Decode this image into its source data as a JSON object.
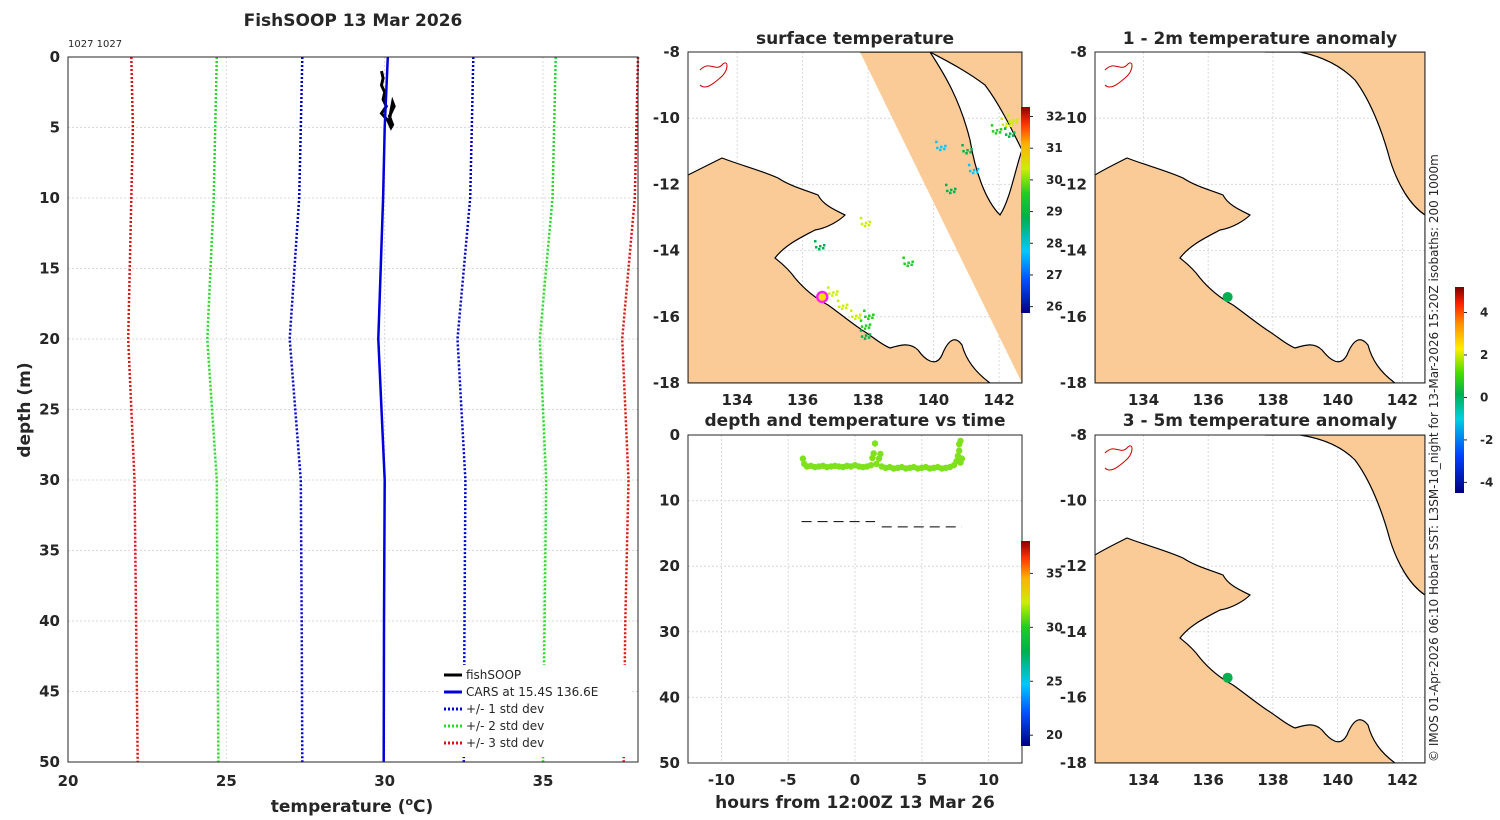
{
  "figure": {
    "credit": "© IMOS 01-Apr-2026 06:10 Hobart SST: L3SM-1d_night for 13-Mar-2026 15:20Z isobaths: 200  1000m"
  },
  "colors": {
    "fishsoop": "#000000",
    "cars": "#0000dd",
    "std1": "#0000cc",
    "std2": "#22dd22",
    "std3": "#dd1111",
    "land": "#fbcb97",
    "track_point": "#7ee11c",
    "marker": "#ff22ff"
  },
  "chart_data": [
    {
      "id": "profile",
      "type": "line",
      "title": "FishSOOP 13 Mar 2026",
      "subtitle": "1027 1027",
      "xlabel": "temperature (°C)",
      "xlabel_main": "temperature (",
      "xlabel_unit_sup": "o",
      "xlabel_unit_tail": "C)",
      "ylabel": "depth (m)",
      "xlim": [
        20,
        38
      ],
      "ylim": [
        50,
        0
      ],
      "xticks": [
        20,
        25,
        30,
        35
      ],
      "yticks": [
        0,
        5,
        10,
        15,
        20,
        25,
        30,
        35,
        40,
        45,
        50
      ],
      "series": [
        {
          "name": "fishSOOP",
          "style": "solid",
          "depth": [
            1,
            1.5,
            2,
            2.5,
            3,
            3.5,
            4,
            4.5,
            5,
            4.8,
            4.2,
            3.5,
            3.2,
            3.8,
            4.5
          ],
          "temp": [
            29.9,
            29.95,
            29.9,
            30.0,
            29.95,
            30.05,
            29.9,
            30.1,
            30.2,
            30.25,
            30.15,
            30.3,
            30.25,
            30.2,
            30.15
          ]
        },
        {
          "name": "CARS at 15.4S 136.6E",
          "style": "solid",
          "depth": [
            0,
            5,
            10,
            20,
            30,
            40,
            50
          ],
          "temp": [
            30.1,
            30.0,
            29.95,
            29.8,
            30.0,
            29.98,
            29.97
          ]
        },
        {
          "name": "+/- 1 std dev",
          "style": "dotted",
          "depth": [
            0,
            5,
            10,
            20,
            30,
            40,
            50
          ],
          "temp": [
            27.4,
            27.35,
            27.3,
            27.0,
            27.35,
            27.38,
            27.4
          ],
          "temp_upper": [
            32.8,
            32.75,
            32.7,
            32.3,
            32.55,
            32.52,
            32.5
          ]
        },
        {
          "name": "+/- 2 std dev",
          "style": "dotted",
          "depth": [
            0,
            5,
            10,
            20,
            30,
            40,
            50
          ],
          "temp": [
            24.7,
            24.65,
            24.6,
            24.4,
            24.7,
            24.72,
            24.75
          ],
          "temp_upper": [
            35.4,
            35.35,
            35.3,
            34.9,
            35.1,
            35.05,
            35.0
          ]
        },
        {
          "name": "+/- 3 std dev",
          "style": "dotted",
          "depth": [
            0,
            5,
            10,
            20,
            30,
            40,
            50
          ],
          "temp": [
            22.0,
            22.05,
            22.0,
            21.9,
            22.1,
            22.15,
            22.2
          ],
          "temp_upper": [
            38.0,
            37.95,
            37.9,
            37.5,
            37.7,
            37.6,
            37.55
          ]
        }
      ]
    },
    {
      "id": "sst_map",
      "type": "heatmap",
      "title": "surface temperature",
      "xlim": [
        132.5,
        142.7
      ],
      "ylim": [
        -18,
        -8
      ],
      "xticks": [
        134,
        136,
        138,
        140,
        142
      ],
      "yticks": [
        -8,
        -10,
        -12,
        -14,
        -16,
        -18
      ],
      "colorbar": {
        "min": 25.8,
        "max": 32.3,
        "ticks": [
          26,
          27,
          28,
          29,
          30,
          31,
          32
        ]
      },
      "marker": {
        "lon": 136.6,
        "lat": -15.4
      },
      "patches": [
        {
          "lon": 142.2,
          "lat": -10.1,
          "value": 30.4
        },
        {
          "lon": 142.4,
          "lat": -10.0,
          "value": 30.9
        },
        {
          "lon": 141.9,
          "lat": -10.3,
          "value": 29.7
        },
        {
          "lon": 142.3,
          "lat": -10.4,
          "value": 29.3
        },
        {
          "lon": 141.0,
          "lat": -10.9,
          "value": 29.0
        },
        {
          "lon": 140.2,
          "lat": -10.8,
          "value": 28.6
        },
        {
          "lon": 141.2,
          "lat": -11.5,
          "value": 28.7
        },
        {
          "lon": 140.5,
          "lat": -12.1,
          "value": 29.2
        },
        {
          "lon": 137.2,
          "lat": -15.6,
          "value": 30.3
        },
        {
          "lon": 137.6,
          "lat": -15.9,
          "value": 30.5
        },
        {
          "lon": 138.0,
          "lat": -15.9,
          "value": 30.2
        },
        {
          "lon": 137.9,
          "lat": -16.2,
          "value": 29.6
        },
        {
          "lon": 137.9,
          "lat": -16.5,
          "value": 29.1
        },
        {
          "lon": 136.9,
          "lat": -15.2,
          "value": 30.6
        },
        {
          "lon": 139.2,
          "lat": -14.3,
          "value": 30.0
        },
        {
          "lon": 137.9,
          "lat": -13.1,
          "value": 30.3
        },
        {
          "lon": 136.5,
          "lat": -13.8,
          "value": 29.5
        }
      ]
    },
    {
      "id": "anomaly_1_2m",
      "type": "heatmap",
      "title": "1 - 2m temperature anomaly",
      "xlim": [
        132.5,
        142.7
      ],
      "ylim": [
        -18,
        -8
      ],
      "xticks": [
        134,
        136,
        138,
        140,
        142
      ],
      "yticks": [
        -8,
        -10,
        -12,
        -14,
        -16,
        -18
      ],
      "points": [
        {
          "lon": 136.6,
          "lat": -15.4,
          "value": -0.2
        }
      ]
    },
    {
      "id": "anomaly_3_5m",
      "type": "heatmap",
      "title": "3 - 5m temperature anomaly",
      "xlim": [
        132.5,
        142.7
      ],
      "ylim": [
        -18,
        -8
      ],
      "xticks": [
        134,
        136,
        138,
        140,
        142
      ],
      "yticks": [
        -8,
        -10,
        -12,
        -14,
        -16,
        -18
      ],
      "points": [
        {
          "lon": 136.6,
          "lat": -15.4,
          "value": -0.3
        }
      ],
      "colorbar": {
        "min": -4.5,
        "max": 5.2,
        "ticks": [
          -4,
          -2,
          0,
          2,
          4
        ]
      }
    },
    {
      "id": "depth_time",
      "type": "scatter",
      "title": "depth and temperature vs time",
      "xlabel": "hours from 12:00Z 13 Mar 26",
      "xlim": [
        -12.5,
        12.5
      ],
      "ylim": [
        50,
        0
      ],
      "xticks": [
        -10,
        -5,
        0,
        5,
        10
      ],
      "yticks": [
        0,
        10,
        20,
        30,
        40,
        50
      ],
      "colorbar": {
        "min": 19,
        "max": 38,
        "ticks": [
          20,
          25,
          30,
          35
        ]
      },
      "bottom_dashes": [
        {
          "x0": -4,
          "x1": 1.5,
          "depth": 13.2
        },
        {
          "x0": 2,
          "x1": 8,
          "depth": 14.0
        }
      ],
      "points_temp": 30.0,
      "points": [
        [
          -3.9,
          3.6
        ],
        [
          -3.8,
          4.4
        ],
        [
          -3.6,
          4.8
        ],
        [
          -3.3,
          4.7
        ],
        [
          -3.0,
          4.9
        ],
        [
          -2.7,
          4.8
        ],
        [
          -2.4,
          4.7
        ],
        [
          -2.1,
          4.9
        ],
        [
          -1.8,
          4.8
        ],
        [
          -1.5,
          4.7
        ],
        [
          -1.2,
          4.8
        ],
        [
          -0.9,
          4.9
        ],
        [
          -0.6,
          4.7
        ],
        [
          -0.3,
          4.8
        ],
        [
          0.0,
          4.6
        ],
        [
          0.3,
          4.8
        ],
        [
          0.6,
          4.9
        ],
        [
          0.9,
          4.8
        ],
        [
          1.2,
          4.6
        ],
        [
          1.3,
          3.5
        ],
        [
          1.4,
          2.8
        ],
        [
          1.5,
          1.3
        ],
        [
          1.6,
          4.4
        ],
        [
          1.8,
          3.6
        ],
        [
          1.9,
          2.9
        ],
        [
          2.0,
          4.8
        ],
        [
          2.3,
          5.0
        ],
        [
          2.6,
          4.9
        ],
        [
          2.9,
          5.1
        ],
        [
          3.2,
          5.0
        ],
        [
          3.5,
          4.9
        ],
        [
          3.8,
          5.1
        ],
        [
          4.1,
          5.0
        ],
        [
          4.4,
          4.9
        ],
        [
          4.7,
          5.1
        ],
        [
          5.0,
          5.0
        ],
        [
          5.3,
          4.9
        ],
        [
          5.6,
          5.1
        ],
        [
          5.9,
          5.0
        ],
        [
          6.2,
          4.9
        ],
        [
          6.5,
          5.1
        ],
        [
          6.8,
          5.0
        ],
        [
          7.1,
          4.9
        ],
        [
          7.4,
          4.6
        ],
        [
          7.6,
          4.0
        ],
        [
          7.7,
          3.2
        ],
        [
          7.8,
          2.4
        ],
        [
          7.8,
          1.4
        ],
        [
          7.9,
          0.9
        ],
        [
          7.9,
          4.2
        ],
        [
          8.0,
          3.6
        ]
      ]
    }
  ]
}
